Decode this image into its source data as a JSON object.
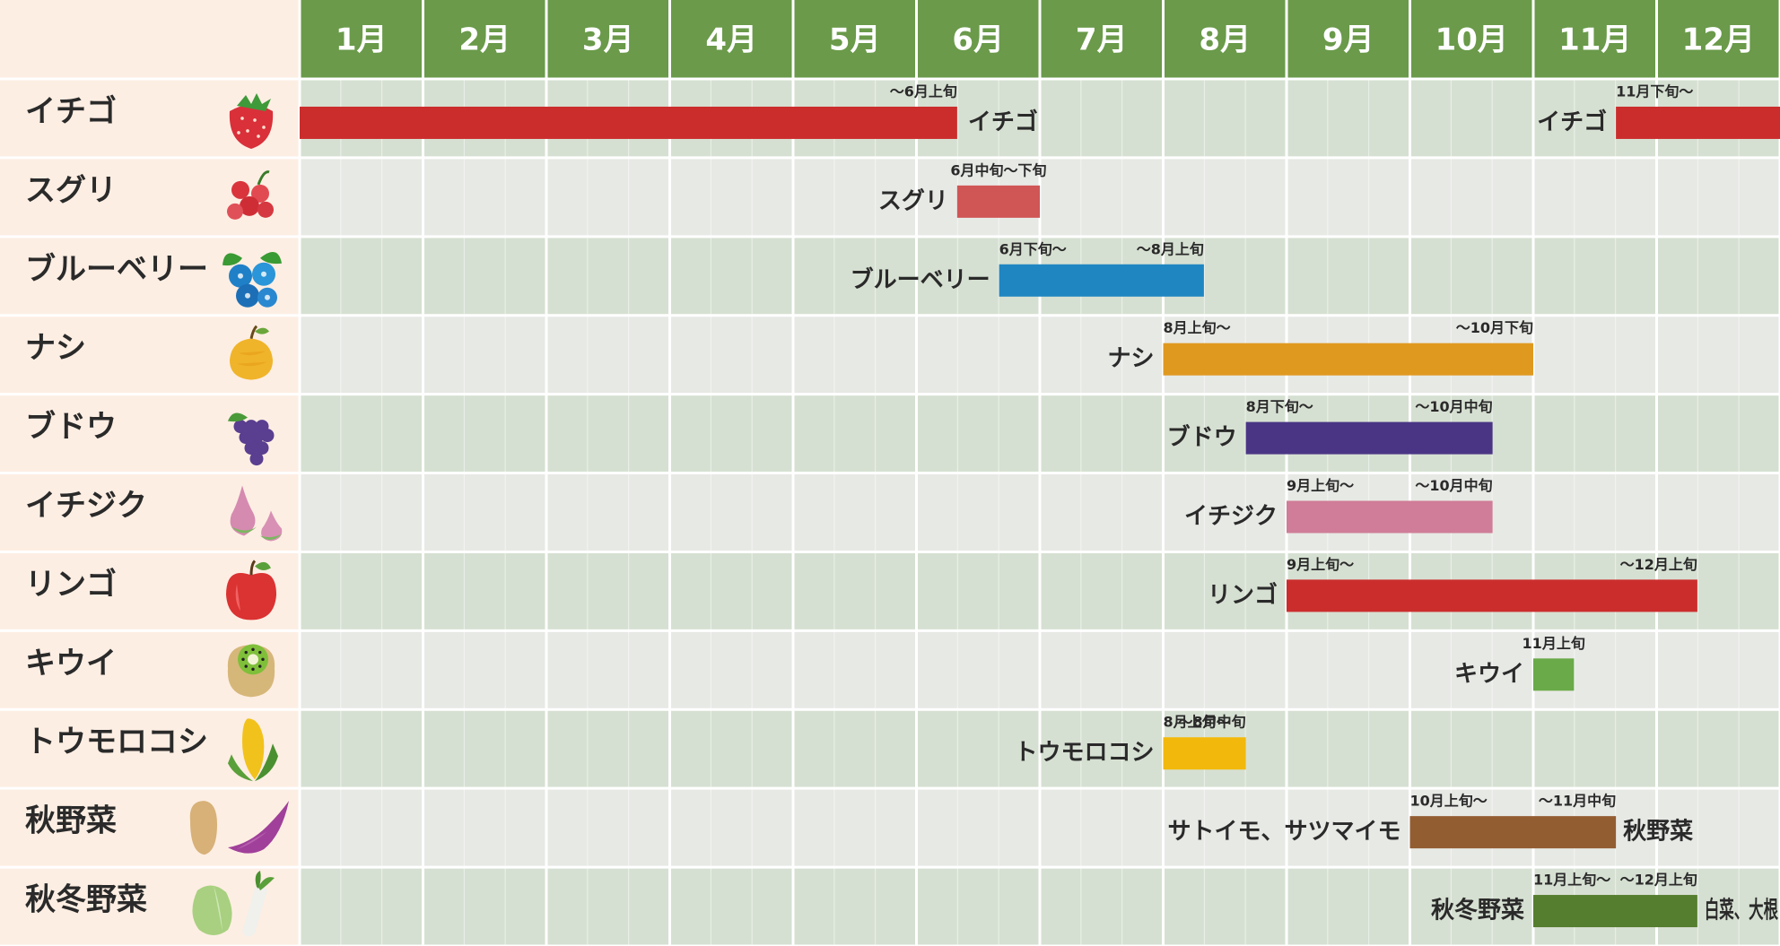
{
  "chart_data": {
    "type": "gantt",
    "months": [
      "1月",
      "2月",
      "3月",
      "4月",
      "5月",
      "6月",
      "7月",
      "8月",
      "9月",
      "10月",
      "11月",
      "12月"
    ],
    "colors": {
      "header_bg": "#6a9a4a",
      "header_text": "#ffffff",
      "label_bg": "#fdeee3",
      "row_green": "#d6e0d2",
      "row_gray": "#e7e9e5",
      "grid_line": "#ffffff"
    },
    "rows": [
      {
        "name": "イチゴ",
        "icon": "strawberry-icon",
        "bars": [
          {
            "start": 0,
            "end": 5.33,
            "color": "#cb2d2d",
            "label": "イチゴ",
            "label_side": "right",
            "note_end": "〜6月上旬"
          },
          {
            "start": 10.67,
            "end": 12,
            "color": "#cb2d2d",
            "label": "イチゴ",
            "label_side": "left",
            "note_start": "11月下旬〜"
          }
        ]
      },
      {
        "name": "スグリ",
        "icon": "currant-icon",
        "bars": [
          {
            "start": 5.33,
            "end": 6,
            "color": "#d05555",
            "label": "スグリ",
            "label_side": "left",
            "note_center": "6月中旬〜下旬"
          }
        ]
      },
      {
        "name": "ブルーベリー",
        "icon": "blueberry-icon",
        "bars": [
          {
            "start": 5.67,
            "end": 7.33,
            "color": "#1f86c1",
            "label": "ブルーベリー",
            "label_side": "left",
            "note_start": "6月下旬〜",
            "note_end": "〜8月上旬"
          }
        ]
      },
      {
        "name": "ナシ",
        "icon": "pear-icon",
        "bars": [
          {
            "start": 7,
            "end": 10,
            "color": "#e0991f",
            "label": "ナシ",
            "label_side": "left",
            "note_start": "8月上旬〜",
            "note_end": "〜10月下旬"
          }
        ]
      },
      {
        "name": "ブドウ",
        "icon": "grape-icon",
        "bars": [
          {
            "start": 7.67,
            "end": 9.67,
            "color": "#4a3585",
            "label": "ブドウ",
            "label_side": "left",
            "note_start": "8月下旬〜",
            "note_end": "〜10月中旬"
          }
        ]
      },
      {
        "name": "イチジク",
        "icon": "fig-icon",
        "bars": [
          {
            "start": 8,
            "end": 9.67,
            "color": "#cf7d98",
            "label": "イチジク",
            "label_side": "left",
            "note_start": "9月上旬〜",
            "note_end": "〜10月中旬"
          }
        ]
      },
      {
        "name": "リンゴ",
        "icon": "apple-icon",
        "bars": [
          {
            "start": 8,
            "end": 11.33,
            "color": "#cb2d2d",
            "label": "リンゴ",
            "label_side": "left",
            "note_start": "9月上旬〜",
            "note_end": "〜12月上旬"
          }
        ]
      },
      {
        "name": "キウイ",
        "icon": "kiwi-icon",
        "bars": [
          {
            "start": 10,
            "end": 10.33,
            "color": "#6aaa48",
            "label": "キウイ",
            "label_side": "left",
            "note_center": "11月上旬"
          }
        ]
      },
      {
        "name": "トウモロコシ",
        "icon": "corn-icon",
        "bars": [
          {
            "start": 7,
            "end": 7.67,
            "color": "#f2b90c",
            "label": "トウモロコシ",
            "label_side": "left",
            "note_start": "8月上旬〜",
            "note_end": "〜8月中旬"
          }
        ]
      },
      {
        "name": "秋野菜",
        "icon": "taro-sweet-potato-icon",
        "bars": [
          {
            "start": 9,
            "end": 10.67,
            "color": "#935d32",
            "label": "サトイモ、サツマイモ",
            "label_side": "left",
            "label2": "秋野菜",
            "note_start": "10月上旬〜",
            "note_end": "〜11月中旬"
          }
        ]
      },
      {
        "name": "秋冬野菜",
        "icon": "cabbage-radish-icon",
        "bars": [
          {
            "start": 10,
            "end": 11.33,
            "color": "#557e2e",
            "label": "秋冬野菜",
            "label_side": "left",
            "label2": "白菜、大根",
            "note_start": "11月上旬〜",
            "note_end": "〜12月上旬"
          }
        ]
      }
    ]
  }
}
